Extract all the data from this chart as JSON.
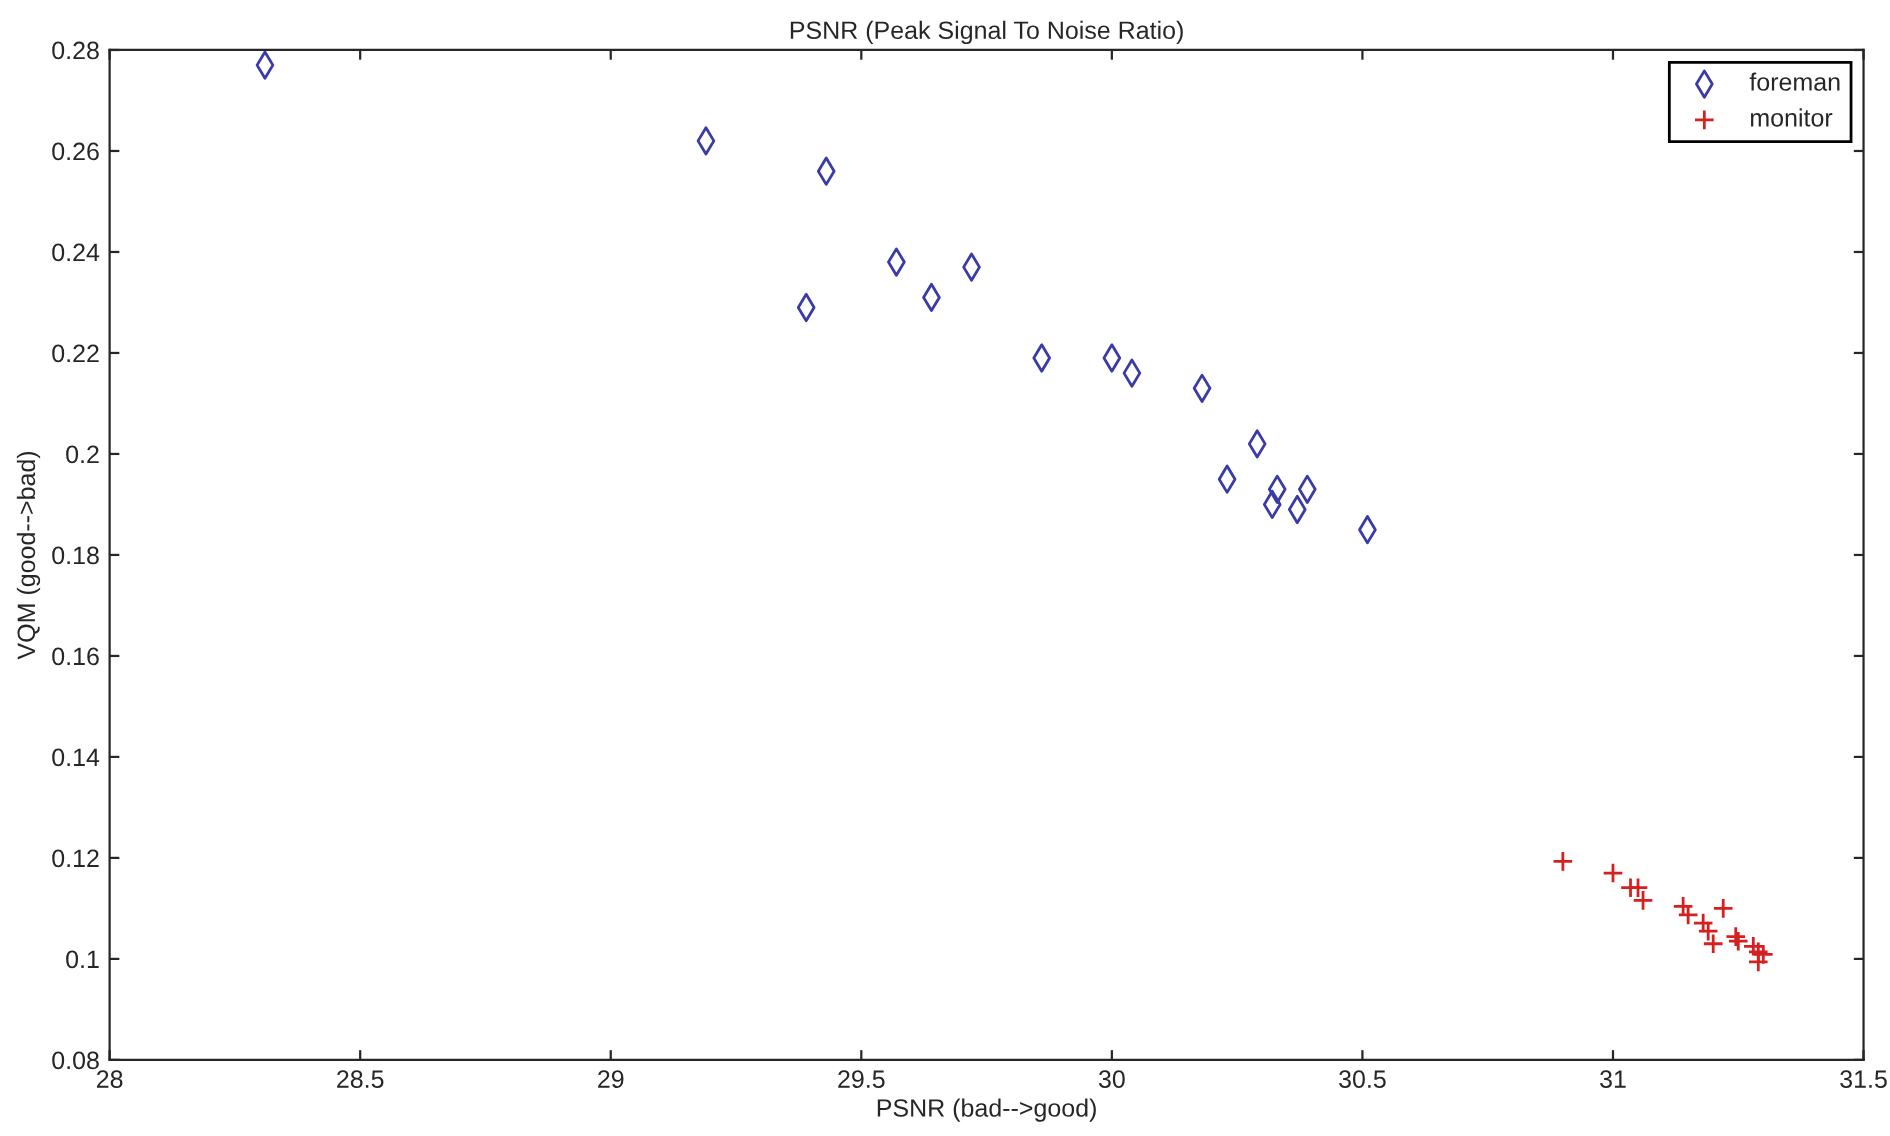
{
  "chart_data": {
    "type": "scatter",
    "title": "PSNR (Peak Signal To Noise Ratio)",
    "xlabel": "PSNR (bad-->good)",
    "ylabel": "VQM (good-->bad)",
    "xlim": [
      28,
      31.5
    ],
    "xticks": [
      28,
      28.5,
      29,
      29.5,
      30,
      30.5,
      31,
      31.5
    ],
    "ylim": [
      0.08,
      0.28
    ],
    "yticks": [
      0.08,
      0.1,
      0.12,
      0.14,
      0.16,
      0.18,
      0.2,
      0.22,
      0.24,
      0.26,
      0.28
    ],
    "grid": false,
    "legend": "top right",
    "series": [
      {
        "name": "foreman",
        "color": "#3a3aa8",
        "marker": "diamond",
        "x": [
          28.31,
          29.19,
          29.43,
          29.57,
          29.72,
          29.39,
          29.64,
          29.86,
          30.0,
          30.04,
          30.18,
          30.29,
          30.23,
          30.32,
          30.33,
          30.37,
          30.39,
          30.51
        ],
        "values": [
          0.277,
          0.262,
          0.256,
          0.238,
          0.237,
          0.229,
          0.231,
          0.219,
          0.219,
          0.216,
          0.213,
          0.202,
          0.195,
          0.19,
          0.193,
          0.189,
          0.193,
          0.185
        ]
      },
      {
        "name": "monitor",
        "color": "#d62020",
        "marker": "cross",
        "x": [
          30.9,
          31.0,
          31.035,
          31.05,
          31.06,
          31.14,
          31.15,
          31.22,
          31.18,
          31.19,
          31.2,
          31.245,
          31.25,
          31.28,
          31.29,
          31.3,
          31.29
        ],
        "values": [
          0.1193,
          0.117,
          0.1141,
          0.1141,
          0.1116,
          0.1104,
          0.1087,
          0.11,
          0.1071,
          0.1055,
          0.103,
          0.1044,
          0.1035,
          0.1025,
          0.1014,
          0.1009,
          0.0994
        ]
      }
    ]
  }
}
